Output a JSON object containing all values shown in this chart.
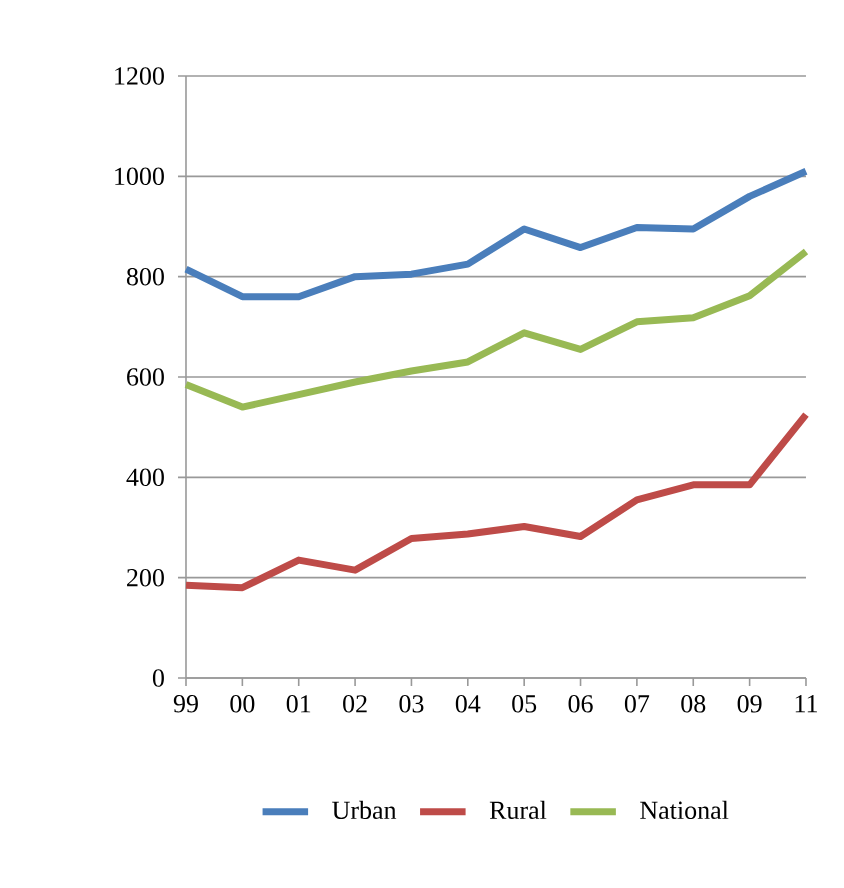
{
  "chart_data": {
    "type": "line",
    "categories": [
      "99",
      "00",
      "01",
      "02",
      "03",
      "04",
      "05",
      "06",
      "07",
      "08",
      "09",
      "11"
    ],
    "series": [
      {
        "name": "Urban",
        "color": "#4a7ebb",
        "values": [
          815,
          760,
          760,
          800,
          805,
          825,
          895,
          858,
          898,
          895,
          960,
          1010
        ]
      },
      {
        "name": "Rural",
        "color": "#be4b48",
        "values": [
          185,
          180,
          235,
          215,
          278,
          287,
          302,
          282,
          355,
          385,
          385,
          525
        ]
      },
      {
        "name": "National",
        "color": "#98b954",
        "values": [
          585,
          540,
          565,
          590,
          612,
          630,
          688,
          655,
          710,
          718,
          762,
          850
        ]
      }
    ],
    "ylim": [
      0,
      1200
    ],
    "yticks": [
      0,
      200,
      400,
      600,
      800,
      1000,
      1200
    ],
    "grid": "y",
    "legend": "bottom",
    "marker": "none",
    "line_style": "solid"
  }
}
